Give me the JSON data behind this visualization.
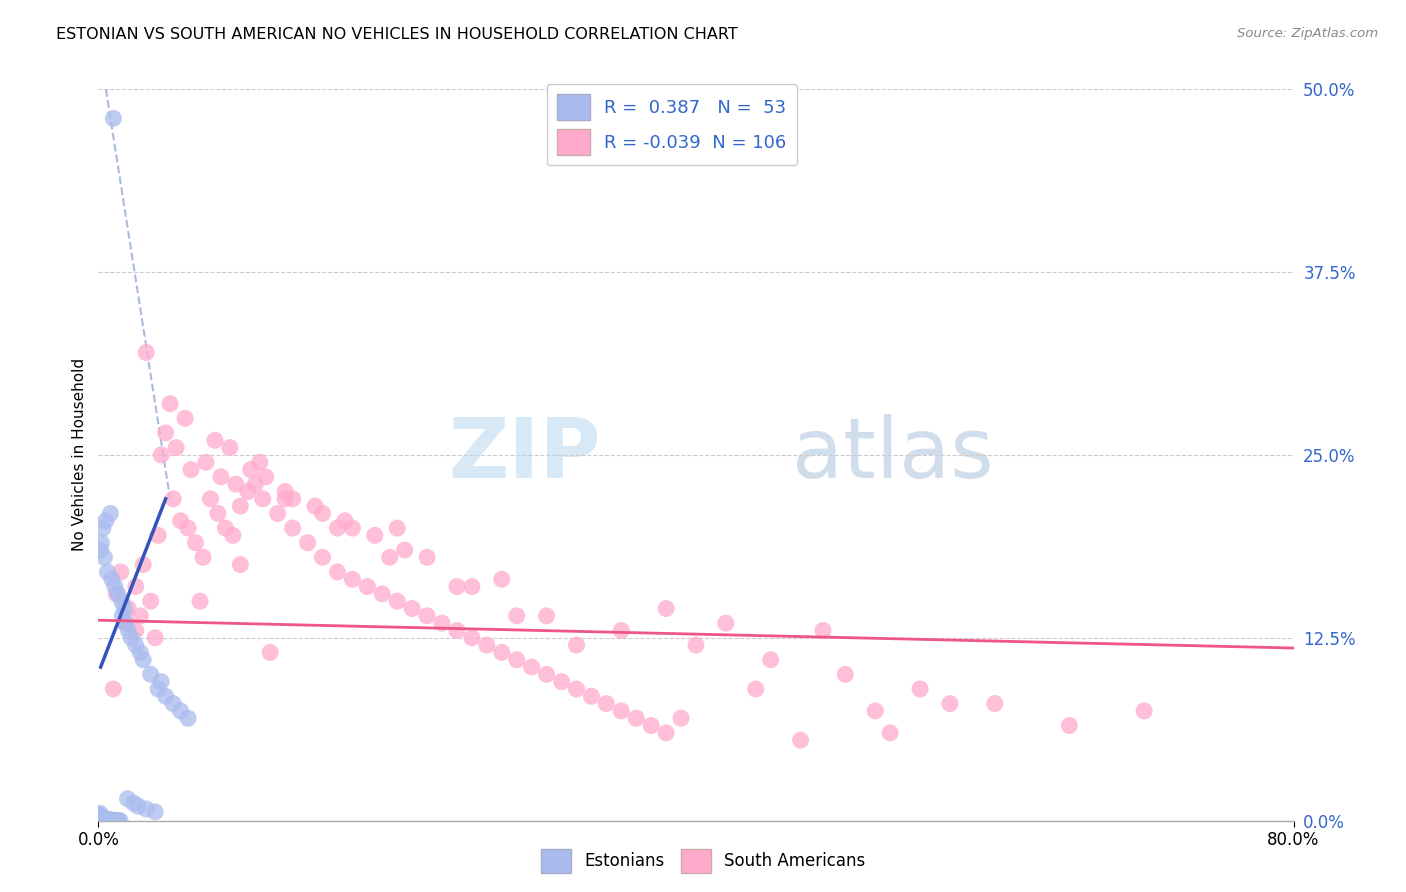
{
  "title": "ESTONIAN VS SOUTH AMERICAN NO VEHICLES IN HOUSEHOLD CORRELATION CHART",
  "source": "Source: ZipAtlas.com",
  "ylabel_label": "No Vehicles in Household",
  "legend_r_estonian": "0.387",
  "legend_n_estonian": "53",
  "legend_r_south": "-0.039",
  "legend_n_south": "106",
  "watermark_zip": "ZIP",
  "watermark_atlas": "atlas",
  "estonian_color": "#aabbee",
  "south_color": "#ffaacc",
  "estonian_line_color": "#3355bb",
  "south_line_color": "#ee5588",
  "estonian_dash_color": "#aabbdd",
  "yticks": [
    0.0,
    12.5,
    25.0,
    37.5,
    50.0
  ],
  "xlim": [
    0,
    80
  ],
  "ylim": [
    0,
    50
  ],
  "estonian_x": [
    1.0,
    0.8,
    0.5,
    0.3,
    0.2,
    0.15,
    0.1,
    0.05,
    0.08,
    0.12,
    0.18,
    0.22,
    0.28,
    0.35,
    0.42,
    0.52,
    0.62,
    0.68,
    0.75,
    0.82,
    0.88,
    0.95,
    1.05,
    1.15,
    1.25,
    1.35,
    1.45,
    1.6,
    1.8,
    2.0,
    2.2,
    2.5,
    2.8,
    3.0,
    3.5,
    4.0,
    4.5,
    5.0,
    5.5,
    6.0,
    0.4,
    0.6,
    0.9,
    1.1,
    1.3,
    1.55,
    1.75,
    1.95,
    2.35,
    2.65,
    3.2,
    3.8,
    4.2
  ],
  "estonian_y": [
    48.0,
    21.0,
    20.5,
    20.0,
    19.0,
    18.5,
    0.5,
    0.4,
    0.35,
    0.3,
    0.25,
    0.2,
    0.18,
    0.15,
    0.12,
    0.1,
    0.08,
    0.06,
    0.05,
    0.04,
    0.03,
    0.025,
    0.02,
    0.015,
    0.01,
    0.008,
    0.006,
    14.0,
    13.5,
    13.0,
    12.5,
    12.0,
    11.5,
    11.0,
    10.0,
    9.0,
    8.5,
    8.0,
    7.5,
    7.0,
    18.0,
    17.0,
    16.5,
    16.0,
    15.5,
    15.0,
    14.5,
    1.5,
    1.2,
    1.0,
    0.8,
    0.6,
    9.5
  ],
  "south_x": [
    1.5,
    2.0,
    2.5,
    1.8,
    1.2,
    2.8,
    3.5,
    3.0,
    4.0,
    4.5,
    5.0,
    5.5,
    6.0,
    6.5,
    7.0,
    7.5,
    8.0,
    8.5,
    9.0,
    9.5,
    10.0,
    10.5,
    11.0,
    12.0,
    13.0,
    14.0,
    15.0,
    16.0,
    17.0,
    18.0,
    19.0,
    20.0,
    21.0,
    22.0,
    23.0,
    24.0,
    25.0,
    26.0,
    27.0,
    28.0,
    29.0,
    30.0,
    31.0,
    32.0,
    33.0,
    34.0,
    35.0,
    36.0,
    37.0,
    38.0,
    4.2,
    5.2,
    6.2,
    7.2,
    8.2,
    9.2,
    10.2,
    11.2,
    12.5,
    14.5,
    16.5,
    18.5,
    20.5,
    3.2,
    4.8,
    5.8,
    7.8,
    8.8,
    10.8,
    15.0,
    20.0,
    25.0,
    30.0,
    35.0,
    40.0,
    45.0,
    50.0,
    55.0,
    60.0,
    42.0,
    38.0,
    27.0,
    22.0,
    17.0,
    13.0,
    9.5,
    6.8,
    48.5,
    32.0,
    28.0,
    24.0,
    19.5,
    16.0,
    12.5,
    11.5,
    3.8,
    2.5,
    1.0,
    39.0,
    44.0,
    52.0,
    57.0,
    65.0,
    70.0,
    47.0,
    53.0
  ],
  "south_y": [
    17.0,
    14.5,
    16.0,
    13.5,
    15.5,
    14.0,
    15.0,
    17.5,
    19.5,
    26.5,
    22.0,
    20.5,
    20.0,
    19.0,
    18.0,
    22.0,
    21.0,
    20.0,
    19.5,
    21.5,
    22.5,
    23.0,
    22.0,
    21.0,
    20.0,
    19.0,
    18.0,
    17.0,
    16.5,
    16.0,
    15.5,
    15.0,
    14.5,
    14.0,
    13.5,
    13.0,
    12.5,
    12.0,
    11.5,
    11.0,
    10.5,
    10.0,
    9.5,
    9.0,
    8.5,
    8.0,
    7.5,
    7.0,
    6.5,
    6.0,
    25.0,
    25.5,
    24.0,
    24.5,
    23.5,
    23.0,
    24.0,
    23.5,
    22.5,
    21.5,
    20.5,
    19.5,
    18.5,
    32.0,
    28.5,
    27.5,
    26.0,
    25.5,
    24.5,
    21.0,
    20.0,
    16.0,
    14.0,
    13.0,
    12.0,
    11.0,
    10.0,
    9.0,
    8.0,
    13.5,
    14.5,
    16.5,
    18.0,
    20.0,
    22.0,
    17.5,
    15.0,
    13.0,
    12.0,
    14.0,
    16.0,
    18.0,
    20.0,
    22.0,
    11.5,
    12.5,
    13.0,
    9.0,
    7.0,
    9.0,
    7.5,
    8.0,
    6.5,
    7.5,
    5.5,
    6.0
  ]
}
